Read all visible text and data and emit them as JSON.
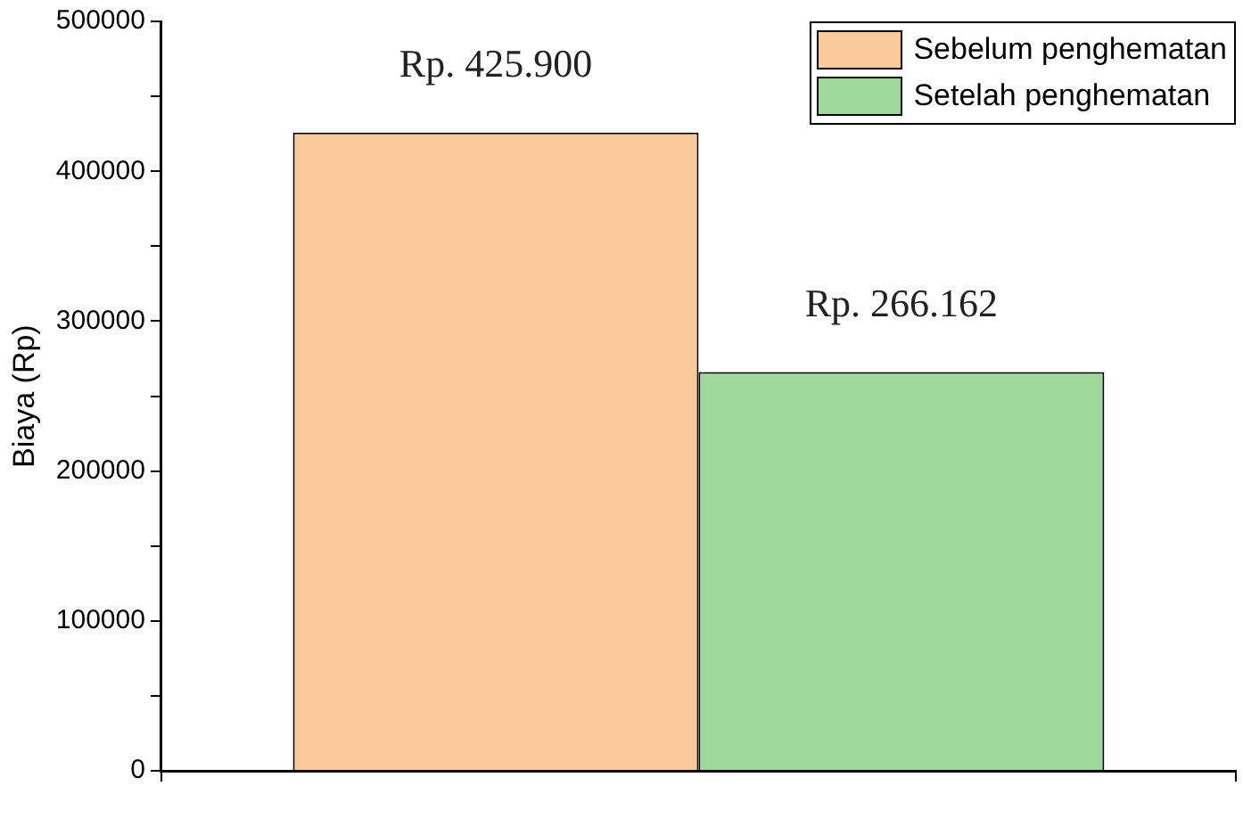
{
  "chart_data": {
    "type": "bar",
    "categories": [
      null
    ],
    "ylabel": "Biaya (Rp)",
    "series": [
      {
        "name": "Sebelum penghematan",
        "color": "#f9c89b",
        "values": [
          425900
        ],
        "value_labels": [
          "Rp. 425.900"
        ]
      },
      {
        "name": "Setelah penghematan",
        "color": "#9ed89b",
        "values": [
          266162
        ],
        "value_labels": [
          "Rp. 266.162"
        ]
      }
    ],
    "ylim": [
      0,
      500000
    ],
    "yticks": [
      0,
      {
        "value": 50000,
        "label": null
      },
      100000,
      {
        "value": 150000,
        "label": null
      },
      200000,
      {
        "value": 250000,
        "label": null
      },
      300000,
      {
        "value": 350000,
        "label": null
      },
      400000,
      {
        "value": 450000,
        "label": null
      },
      500000
    ],
    "grid": false,
    "legend": "top right"
  }
}
